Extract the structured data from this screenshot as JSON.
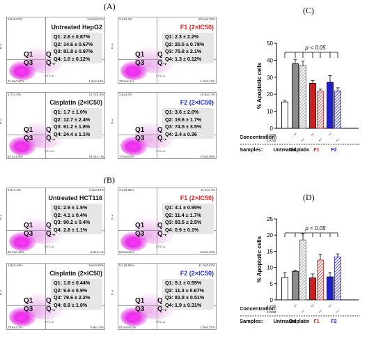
{
  "panel_labels": {
    "a": "(A)",
    "b": "(B)",
    "c": "(C)",
    "d": "(D)"
  },
  "flow_panels": [
    {
      "title": "Untreated HepG2",
      "title_color": "#111111",
      "stats": [
        "Q1: 2.6 ± 0.87%",
        "Q2: 14.6 ± 0.67%",
        "Q3: 81.8 ± 0.97%",
        "Q4: 1.0 ± 0.12%"
      ],
      "corners": {
        "tl": "2.6±0.87%",
        "tr": "14.6±0.67%",
        "bl": "81.8±0.97%",
        "br": "1.0±0.12%"
      }
    },
    {
      "title": "F1 (2×IC50)",
      "title_color": "#e21f1f",
      "stats": [
        "Q1: 2.3 ± 2.2%",
        "Q2: 20.5 ± 0.78%",
        "Q3: 75.8 ± 2.1%",
        "Q4: 1.3 ± 0.12%"
      ],
      "corners": {
        "tl": "2.3±2.2%",
        "tr": "20.5±0.78%",
        "bl": "75.8±2.1%",
        "br": "1.3±0.12%"
      }
    },
    {
      "title": "Cisplatin (2×IC50)",
      "title_color": "#111111",
      "stats": [
        "Q1: 1.7 ± 1.0%",
        "Q2: 12.7 ± 2.4%",
        "Q3: 61.2 ± 1.8%",
        "Q4: 24.4 ± 1.1%"
      ],
      "corners": {
        "tl": "1.7±1.0%",
        "tr": "12.7±2.4%",
        "bl": "61.2±1.8%",
        "br": "24.4±1.1%"
      }
    },
    {
      "title": "F2 (2×IC50)",
      "title_color": "#1f2fd0",
      "stats": [
        "Q1: 3.6 ± 2.0%",
        "Q2: 19.6 ± 1.7%",
        "Q3: 74.5 ± 3.5%",
        "Q4: 2.4 ± 0.36"
      ],
      "corners": {
        "tl": "3.6±2.0%",
        "tr": "19.6±1.7%",
        "bl": "74.5±3.5%",
        "br": "2.4±0.36%"
      }
    },
    {
      "title": "Untreated HCT116",
      "title_color": "#111111",
      "stats": [
        "Q1: 2.9 ± 1.5%",
        "Q2: 4.1 ± 0.4%",
        "Q3: 90.2 ± 0.4%",
        "Q4: 2.8 ± 1.1%"
      ],
      "corners": {
        "tl": "2.9±1.5%",
        "tr": "4.1±0.40%",
        "bl": "90.2±0.40%",
        "br": "2.8±1.1%"
      }
    },
    {
      "title": "F1 (2×IC50)",
      "title_color": "#e21f1f",
      "stats": [
        "Q1: 4.1 ± 0.95%",
        "Q2: 11.4 ± 1.7%",
        "Q3: 83.5 ± 2.5%",
        "Q4: 0.9 ± 0.1%"
      ],
      "corners": {
        "tl": "4.1±0.95%",
        "tr": "11.4±1.7%",
        "bl": "83.5±2.5%",
        "br": "0.9±0.10%"
      }
    },
    {
      "title": "Cisplatin (2×IC50)",
      "title_color": "#111111",
      "stats": [
        "Q1: 1.8 ± 0.44%",
        "Q2: 9.6 ± 0.9%",
        "Q3: 79.6 ± 2.2%",
        "Q4: 8.9 ± 1.0%"
      ],
      "corners": {
        "tl": "1.8±0.44%",
        "tr": "9.6±0.90%",
        "bl": "79.6±2.2%",
        "br": "8.9±1.0%"
      }
    },
    {
      "title": "F2 (2×IC50)",
      "title_color": "#1f2fd0",
      "stats": [
        "Q1: 5.1 ± 0.55%",
        "Q2: 11.3 ± 0.67%",
        "Q3: 81.8 ± 0.51%",
        "Q4: 1.9 ± 0.31%"
      ],
      "corners": {
        "tl": "5.1±0.55%",
        "tr": "11.3±0.67%",
        "bl": "81.8±0.51%",
        "br": "1.9±0.31%"
      }
    }
  ],
  "quadrant_labels": [
    "Q1",
    "Q2",
    "Q3",
    "Q4"
  ],
  "axis_x_flow": "FITC-A",
  "axis_y_flow": "PI-A",
  "colors": {
    "untreated": "#ffffff",
    "cisplatin": "#8c8c8c",
    "f1": "#cc1f1f",
    "f2": "#1f1fcc",
    "check": "#2a4fbf"
  },
  "chart_data": [
    {
      "type": "bar",
      "ylabel": "% Apoptotic cells",
      "ylim": [
        0,
        50
      ],
      "yticks": [
        0,
        10,
        20,
        30,
        40,
        50
      ],
      "significance": "p < 0.05",
      "categories": [
        "Untreated",
        "Cisplatin",
        "F1",
        "F2"
      ],
      "bars": [
        {
          "group": "Untreated",
          "dose": "",
          "value": 15.5,
          "error": 1.0
        },
        {
          "group": "Cisplatin",
          "dose": "1 IC50",
          "value": 38.0,
          "error": 2.5
        },
        {
          "group": "Cisplatin",
          "dose": "2 IC50",
          "value": 37.0,
          "error": 2.5
        },
        {
          "group": "F1",
          "dose": "1 IC50",
          "value": 26.5,
          "error": 1.5
        },
        {
          "group": "F1",
          "dose": "2 IC50",
          "value": 21.8,
          "error": 1.2
        },
        {
          "group": "F2",
          "dose": "1 IC50",
          "value": 27.0,
          "error": 4.0
        },
        {
          "group": "F2",
          "dose": "2 IC50",
          "value": 22.0,
          "error": 1.8
        }
      ],
      "concentration_label": "Concentration:",
      "dose_labels": [
        "1 IC50",
        "2 IC50"
      ],
      "samples_label": "Samples:"
    },
    {
      "type": "bar",
      "ylabel": "% Apoptotic cells",
      "ylim": [
        0,
        25
      ],
      "yticks": [
        0,
        5,
        10,
        15,
        20,
        25
      ],
      "significance": "p < 0.05",
      "categories": [
        "Untreated",
        "Cisplatin",
        "F1",
        "F2"
      ],
      "bars": [
        {
          "group": "Untreated",
          "dose": "",
          "value": 6.9,
          "error": 1.5
        },
        {
          "group": "Cisplatin",
          "dose": "1 IC50",
          "value": 8.8,
          "error": 0.3
        },
        {
          "group": "Cisplatin",
          "dose": "2 IC50",
          "value": 18.5,
          "error": 2.0
        },
        {
          "group": "F1",
          "dose": "1 IC50",
          "value": 6.8,
          "error": 1.2
        },
        {
          "group": "F1",
          "dose": "2 IC50",
          "value": 12.3,
          "error": 1.8
        },
        {
          "group": "F2",
          "dose": "1 IC50",
          "value": 7.1,
          "error": 1.3
        },
        {
          "group": "F2",
          "dose": "2 IC50",
          "value": 13.2,
          "error": 1.0
        }
      ],
      "concentration_label": "Concentration:",
      "dose_labels": [
        "1 IC50",
        "2 IC50"
      ],
      "samples_label": "Samples:"
    }
  ]
}
